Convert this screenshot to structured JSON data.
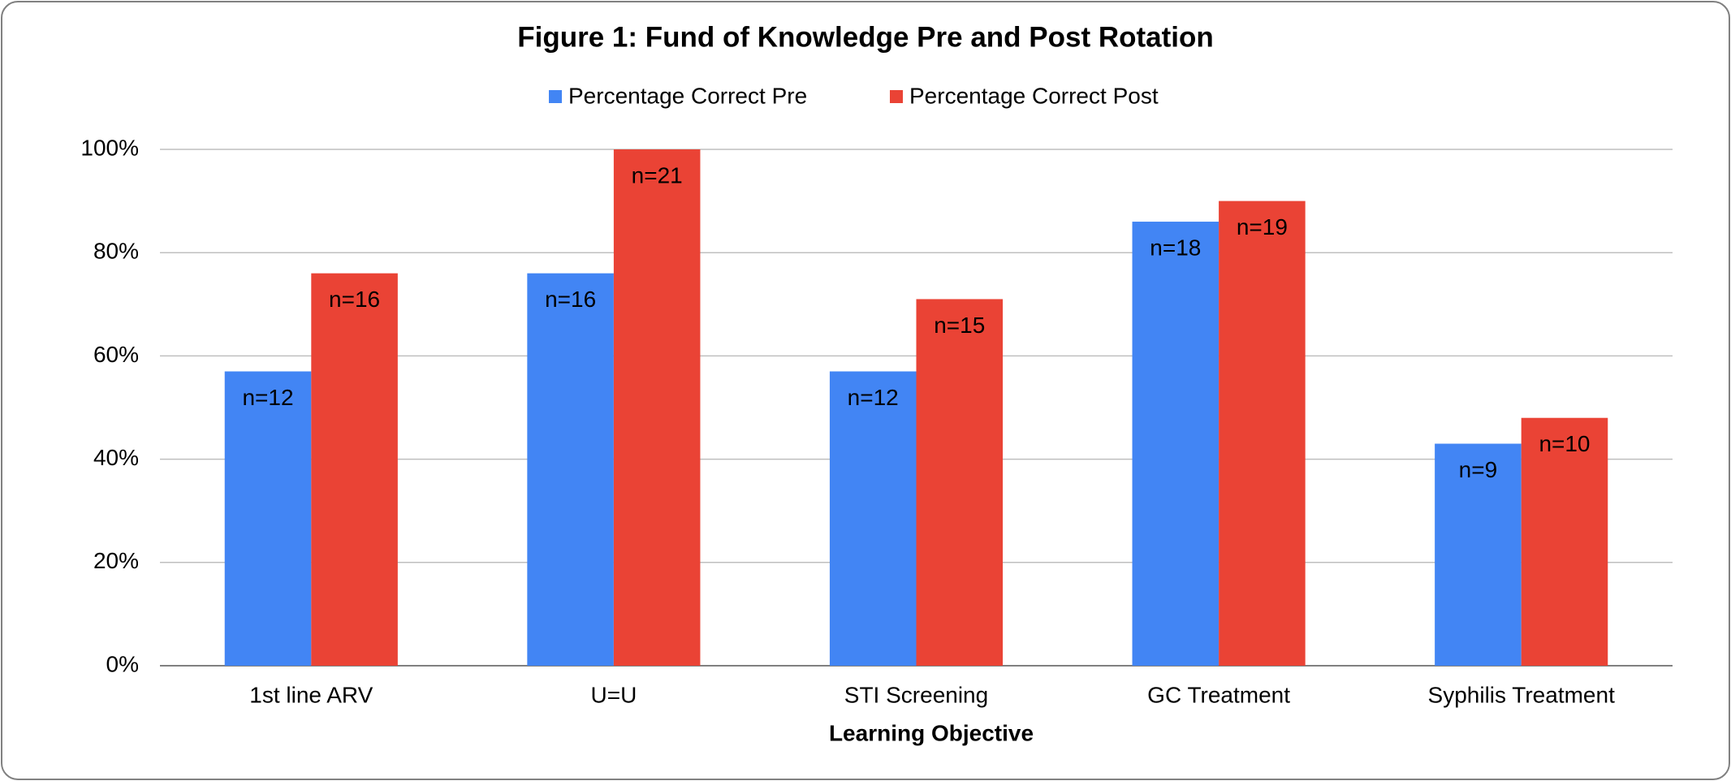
{
  "chart_data": {
    "type": "bar",
    "title": "Figure 1: Fund of Knowledge Pre and Post Rotation",
    "x_label": "Learning Objective",
    "categories": [
      "1st line ARV",
      "U=U",
      "STI Screening",
      "GC Treatment",
      "Syphilis Treatment"
    ],
    "series": [
      {
        "name": "Percentage Correct Pre",
        "color": "#4285f4",
        "values": [
          57,
          76,
          57,
          86,
          43
        ],
        "labels": [
          "n=12",
          "n=16",
          "n=12",
          "n=18",
          "n=9"
        ]
      },
      {
        "name": "Percentage Correct Post",
        "color": "#ea4335",
        "values": [
          76,
          100,
          71,
          90,
          48
        ],
        "labels": [
          "n=16",
          "n=21",
          "n=15",
          "n=19",
          "n=10"
        ]
      }
    ],
    "ylim": [
      0,
      100
    ],
    "yticks": [
      {
        "value": 0,
        "label": "0%"
      },
      {
        "value": 20,
        "label": "20%"
      },
      {
        "value": 40,
        "label": "40%"
      },
      {
        "value": 60,
        "label": "60%"
      },
      {
        "value": 80,
        "label": "80%"
      },
      {
        "value": 100,
        "label": "100%"
      }
    ],
    "grid": true,
    "legend": "top"
  }
}
